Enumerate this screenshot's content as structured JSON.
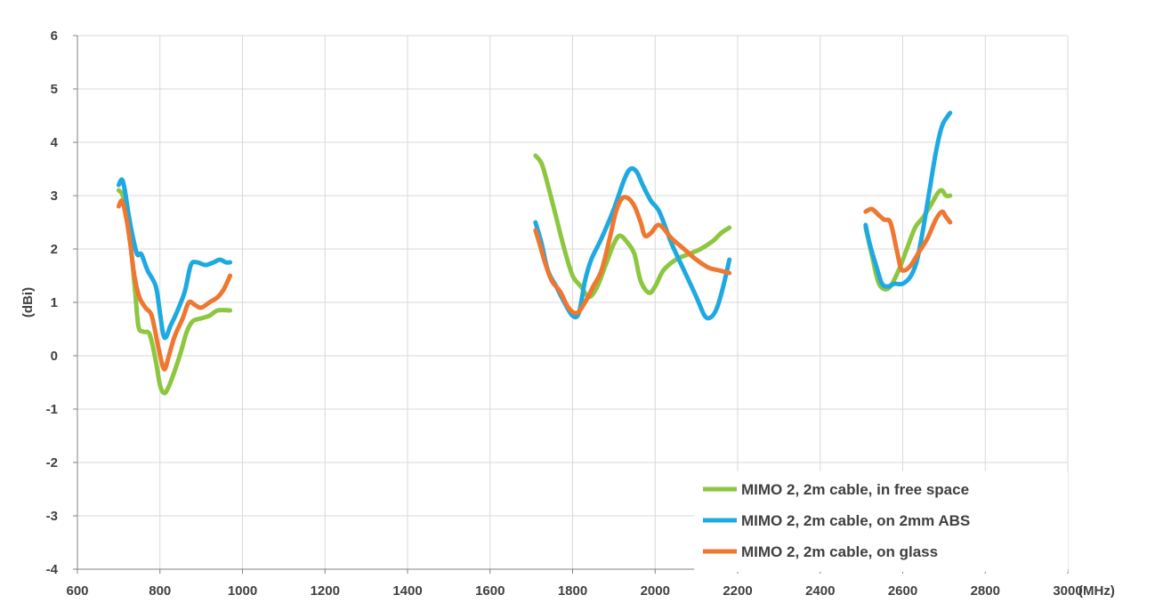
{
  "chart_data": {
    "type": "line",
    "title": "",
    "xlabel": "(MHz)",
    "ylabel": "(dBi)",
    "xlim": [
      600,
      3000
    ],
    "ylim": [
      -4,
      6
    ],
    "xticks": [
      600,
      800,
      1000,
      1200,
      1400,
      1600,
      1800,
      2000,
      2200,
      2400,
      2600,
      2800,
      3000
    ],
    "yticks": [
      -4,
      -3,
      -2,
      -1,
      0,
      1,
      2,
      3,
      4,
      5,
      6
    ],
    "grid": true,
    "legend_position": "bottom-right",
    "series": [
      {
        "name": "MIMO 2, 2m cable, in free space",
        "color": "#8dc63f",
        "segments": [
          [
            [
              700,
              3.1
            ],
            [
              710,
              3.0
            ],
            [
              720,
              2.6
            ],
            [
              730,
              2.0
            ],
            [
              740,
              1.2
            ],
            [
              748,
              0.55
            ],
            [
              760,
              0.45
            ],
            [
              775,
              0.4
            ],
            [
              790,
              -0.1
            ],
            [
              800,
              -0.55
            ],
            [
              810,
              -0.7
            ],
            [
              820,
              -0.6
            ],
            [
              835,
              -0.3
            ],
            [
              850,
              0.05
            ],
            [
              865,
              0.45
            ],
            [
              880,
              0.65
            ],
            [
              900,
              0.7
            ],
            [
              920,
              0.75
            ],
            [
              940,
              0.85
            ],
            [
              970,
              0.85
            ]
          ],
          [
            [
              1710,
              3.75
            ],
            [
              1725,
              3.6
            ],
            [
              1740,
              3.2
            ],
            [
              1760,
              2.6
            ],
            [
              1780,
              2.0
            ],
            [
              1800,
              1.5
            ],
            [
              1820,
              1.3
            ],
            [
              1840,
              1.1
            ],
            [
              1860,
              1.3
            ],
            [
              1880,
              1.7
            ],
            [
              1900,
              2.1
            ],
            [
              1915,
              2.25
            ],
            [
              1935,
              2.1
            ],
            [
              1950,
              1.9
            ],
            [
              1965,
              1.4
            ],
            [
              1985,
              1.18
            ],
            [
              2000,
              1.3
            ],
            [
              2020,
              1.6
            ],
            [
              2050,
              1.8
            ],
            [
              2080,
              1.9
            ],
            [
              2110,
              2.0
            ],
            [
              2140,
              2.15
            ],
            [
              2160,
              2.3
            ],
            [
              2180,
              2.4
            ]
          ],
          [
            [
              2510,
              2.4
            ],
            [
              2525,
              1.9
            ],
            [
              2540,
              1.4
            ],
            [
              2555,
              1.25
            ],
            [
              2570,
              1.3
            ],
            [
              2590,
              1.6
            ],
            [
              2610,
              2.0
            ],
            [
              2630,
              2.4
            ],
            [
              2650,
              2.6
            ],
            [
              2670,
              2.85
            ],
            [
              2685,
              3.05
            ],
            [
              2695,
              3.1
            ],
            [
              2705,
              3.0
            ],
            [
              2715,
              3.0
            ]
          ]
        ]
      },
      {
        "name": "MIMO 2, 2m cable, on 2mm ABS",
        "color": "#1fa9e1",
        "segments": [
          [
            [
              700,
              3.2
            ],
            [
              708,
              3.3
            ],
            [
              715,
              3.1
            ],
            [
              725,
              2.6
            ],
            [
              735,
              2.2
            ],
            [
              745,
              1.9
            ],
            [
              755,
              1.9
            ],
            [
              770,
              1.6
            ],
            [
              790,
              1.3
            ],
            [
              800,
              0.8
            ],
            [
              808,
              0.4
            ],
            [
              815,
              0.35
            ],
            [
              825,
              0.55
            ],
            [
              840,
              0.8
            ],
            [
              860,
              1.2
            ],
            [
              875,
              1.7
            ],
            [
              890,
              1.75
            ],
            [
              910,
              1.7
            ],
            [
              930,
              1.75
            ],
            [
              945,
              1.8
            ],
            [
              960,
              1.75
            ],
            [
              970,
              1.75
            ]
          ],
          [
            [
              1710,
              2.5
            ],
            [
              1725,
              2.1
            ],
            [
              1740,
              1.6
            ],
            [
              1760,
              1.3
            ],
            [
              1780,
              1.0
            ],
            [
              1800,
              0.75
            ],
            [
              1815,
              0.8
            ],
            [
              1830,
              1.4
            ],
            [
              1845,
              1.8
            ],
            [
              1870,
              2.2
            ],
            [
              1900,
              2.75
            ],
            [
              1925,
              3.3
            ],
            [
              1940,
              3.5
            ],
            [
              1955,
              3.45
            ],
            [
              1970,
              3.2
            ],
            [
              1990,
              2.9
            ],
            [
              2010,
              2.7
            ],
            [
              2040,
              2.1
            ],
            [
              2070,
              1.6
            ],
            [
              2100,
              1.1
            ],
            [
              2120,
              0.75
            ],
            [
              2135,
              0.72
            ],
            [
              2150,
              0.9
            ],
            [
              2165,
              1.3
            ],
            [
              2180,
              1.8
            ]
          ],
          [
            [
              2510,
              2.45
            ],
            [
              2520,
              2.1
            ],
            [
              2535,
              1.7
            ],
            [
              2550,
              1.35
            ],
            [
              2565,
              1.3
            ],
            [
              2580,
              1.35
            ],
            [
              2600,
              1.35
            ],
            [
              2620,
              1.5
            ],
            [
              2635,
              1.8
            ],
            [
              2650,
              2.4
            ],
            [
              2665,
              3.1
            ],
            [
              2680,
              3.8
            ],
            [
              2695,
              4.3
            ],
            [
              2710,
              4.5
            ],
            [
              2715,
              4.55
            ]
          ]
        ]
      },
      {
        "name": "MIMO 2, 2m cable, on glass",
        "color": "#ee7731",
        "segments": [
          [
            [
              700,
              2.8
            ],
            [
              708,
              2.9
            ],
            [
              718,
              2.6
            ],
            [
              728,
              2.1
            ],
            [
              738,
              1.5
            ],
            [
              750,
              1.1
            ],
            [
              765,
              0.9
            ],
            [
              780,
              0.75
            ],
            [
              795,
              0.2
            ],
            [
              805,
              -0.15
            ],
            [
              812,
              -0.25
            ],
            [
              820,
              -0.05
            ],
            [
              835,
              0.35
            ],
            [
              855,
              0.7
            ],
            [
              870,
              1.0
            ],
            [
              885,
              0.95
            ],
            [
              900,
              0.9
            ],
            [
              920,
              1.0
            ],
            [
              940,
              1.1
            ],
            [
              955,
              1.25
            ],
            [
              970,
              1.5
            ]
          ],
          [
            [
              1710,
              2.35
            ],
            [
              1720,
              2.1
            ],
            [
              1735,
              1.7
            ],
            [
              1750,
              1.4
            ],
            [
              1770,
              1.2
            ],
            [
              1790,
              0.9
            ],
            [
              1810,
              0.8
            ],
            [
              1830,
              1.0
            ],
            [
              1850,
              1.3
            ],
            [
              1870,
              1.6
            ],
            [
              1890,
              2.2
            ],
            [
              1905,
              2.7
            ],
            [
              1920,
              2.95
            ],
            [
              1935,
              2.95
            ],
            [
              1950,
              2.8
            ],
            [
              1965,
              2.5
            ],
            [
              1975,
              2.25
            ],
            [
              1990,
              2.3
            ],
            [
              2010,
              2.45
            ],
            [
              2040,
              2.2
            ],
            [
              2070,
              2.0
            ],
            [
              2100,
              1.8
            ],
            [
              2130,
              1.65
            ],
            [
              2155,
              1.6
            ],
            [
              2180,
              1.55
            ]
          ],
          [
            [
              2510,
              2.7
            ],
            [
              2525,
              2.75
            ],
            [
              2540,
              2.65
            ],
            [
              2555,
              2.55
            ],
            [
              2570,
              2.5
            ],
            [
              2585,
              2.0
            ],
            [
              2595,
              1.65
            ],
            [
              2605,
              1.6
            ],
            [
              2620,
              1.7
            ],
            [
              2640,
              1.95
            ],
            [
              2660,
              2.2
            ],
            [
              2680,
              2.55
            ],
            [
              2695,
              2.7
            ],
            [
              2705,
              2.6
            ],
            [
              2715,
              2.5
            ]
          ]
        ]
      }
    ]
  }
}
